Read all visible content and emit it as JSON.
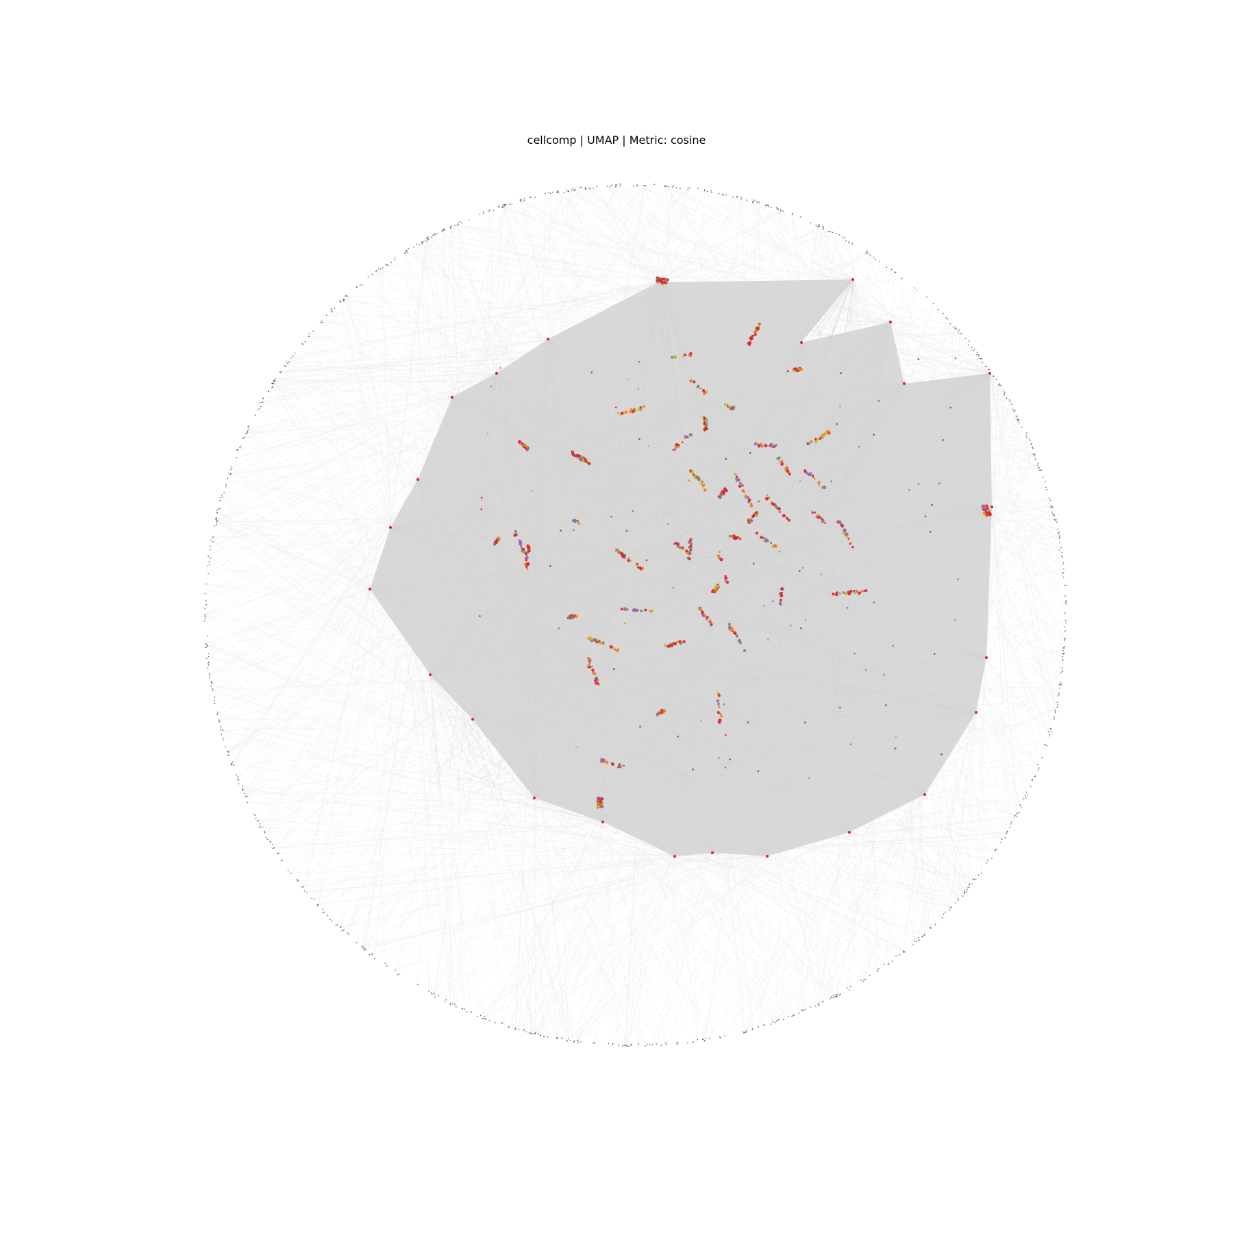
{
  "chart_data": {
    "type": "scatter",
    "title": "cellcomp | UMAP | Metric: cosine",
    "xlabel": "",
    "ylabel": "",
    "axes_visible": false,
    "grid": false,
    "legend": "none",
    "colors": {
      "edge": "#d6d6d6",
      "outer_edge": "#e8e8e8",
      "point_red": "#d62728",
      "point_orange": "#ff7f0e",
      "point_olive": "#bcbd22",
      "point_gray": "#7f7f7f",
      "point_purple": "#9467bd",
      "ring_point": "#555555"
    },
    "layout_description": "UMAP embedding graph: dense central region with many small red/orange clusters, a gray mesh of edges, and an outer ring of isolated nodes connected by light edges."
  }
}
